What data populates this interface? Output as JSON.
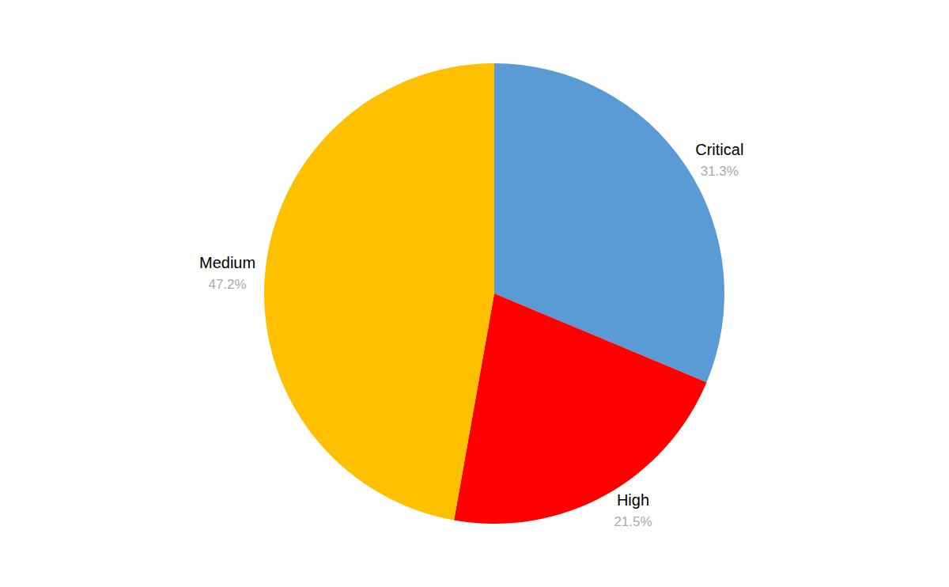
{
  "chart_data": {
    "type": "pie",
    "categories": [
      "Critical",
      "High",
      "Medium"
    ],
    "values": [
      31.3,
      21.5,
      47.2
    ],
    "value_labels": [
      "31.3%",
      "21.5%",
      "47.2%"
    ],
    "colors": [
      "#5B9BD5",
      "#FF0000",
      "#FFC000"
    ],
    "data_labels": true
  }
}
